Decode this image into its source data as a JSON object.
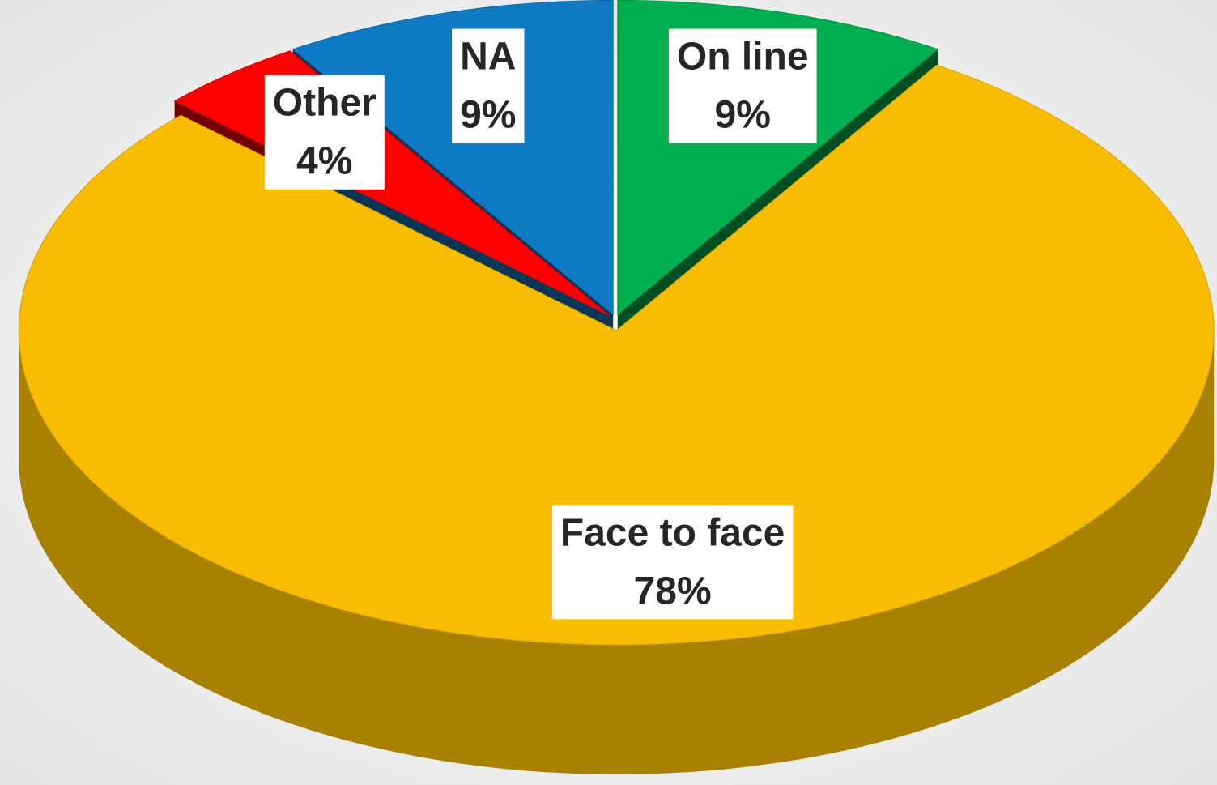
{
  "chart_data": {
    "type": "pie",
    "categories": [
      "On line",
      "Face to face",
      "Other",
      "NA"
    ],
    "values": [
      9,
      78,
      4,
      9
    ],
    "value_labels": [
      "9%",
      "78%",
      "4%",
      "9%"
    ],
    "colors": [
      "#00b050",
      "#f9bd00",
      "#ff0000",
      "#0f7ac4"
    ]
  }
}
